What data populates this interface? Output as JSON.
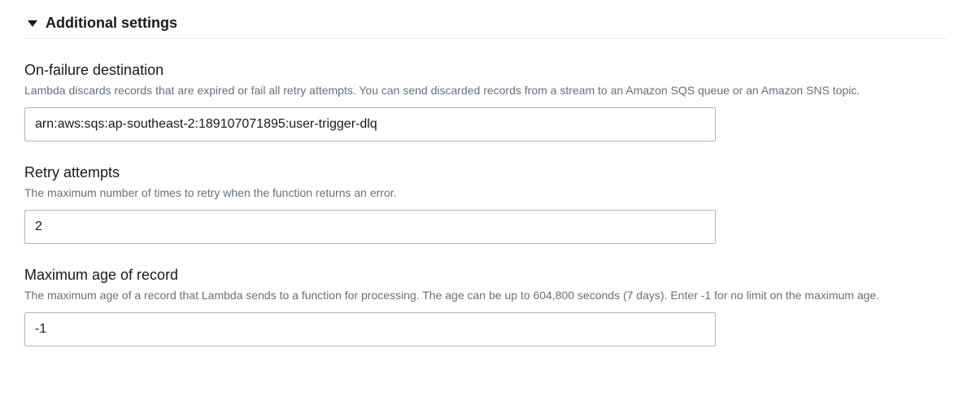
{
  "section": {
    "title": "Additional settings"
  },
  "fields": {
    "onFailure": {
      "label": "On-failure destination",
      "description": "Lambda discards records that are expired or fail all retry attempts. You can send discarded records from a stream to an Amazon SQS queue or an Amazon SNS topic.",
      "value": "arn:aws:sqs:ap-southeast-2:189107071895:user-trigger-dlq"
    },
    "retryAttempts": {
      "label": "Retry attempts",
      "description": "The maximum number of times to retry when the function returns an error.",
      "value": "2"
    },
    "maxAge": {
      "label": "Maximum age of record",
      "description": "The maximum age of a record that Lambda sends to a function for processing. The age can be up to 604,800 seconds (7 days). Enter -1 for no limit on the maximum age.",
      "value": "-1"
    }
  },
  "colors": {
    "text": "#16191f",
    "muted": "#687078",
    "border": "#aab7b8",
    "divider": "#eaeded",
    "background": "#ffffff"
  }
}
